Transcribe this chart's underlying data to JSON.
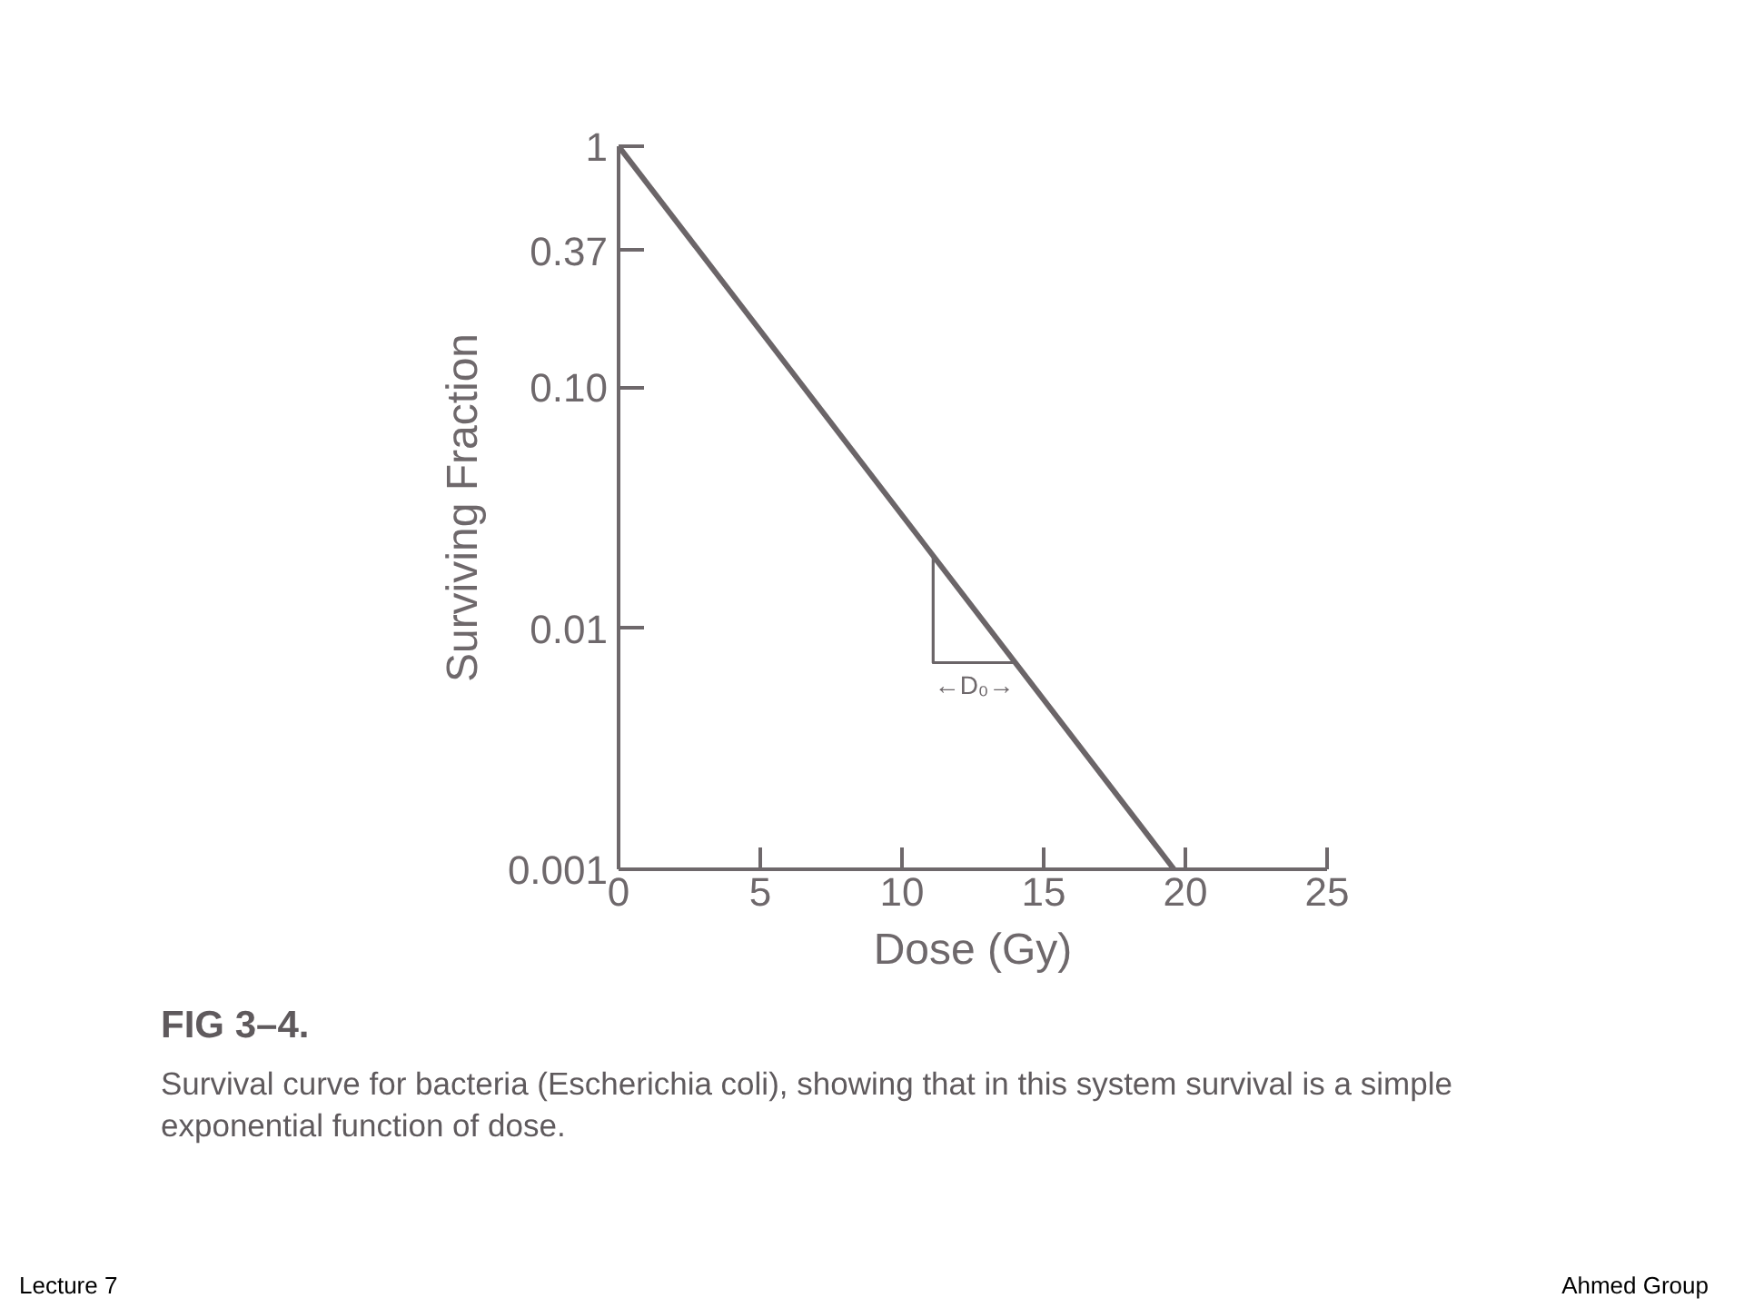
{
  "chart_data": {
    "type": "line",
    "title": "FIG 3–4.",
    "subtitle": "Survival curve for bacteria (Escherichia coli), showing that in this system survival is a simple exponential function of dose.",
    "xlabel": "Dose (Gy)",
    "ylabel": "Surviving Fraction",
    "series": [
      {
        "color": "#6b6568",
        "x": [
          0,
          19.6
        ],
        "values": [
          1,
          0.001
        ]
      },
      {
        "color": "#6b6568",
        "x": [
          11.1,
          11.1,
          14.0
        ],
        "values": [
          0.02,
          0.0072,
          0.0072
        ]
      }
    ],
    "xlim": [
      0,
      25
    ],
    "ylim": [
      0.001,
      1
    ],
    "xticks": [
      0,
      5,
      10,
      15,
      20,
      25
    ],
    "yticks": [
      0.001,
      0.01,
      {
        "value": 0.1,
        "label": "0.10"
      },
      0.37,
      1
    ],
    "log": "y",
    "grid": false,
    "annotations": [
      {
        "text": "←D₀→",
        "x": 12.55,
        "y": 0.0072
      },
      "Lecture 7",
      "Ahmed Group"
    ]
  }
}
